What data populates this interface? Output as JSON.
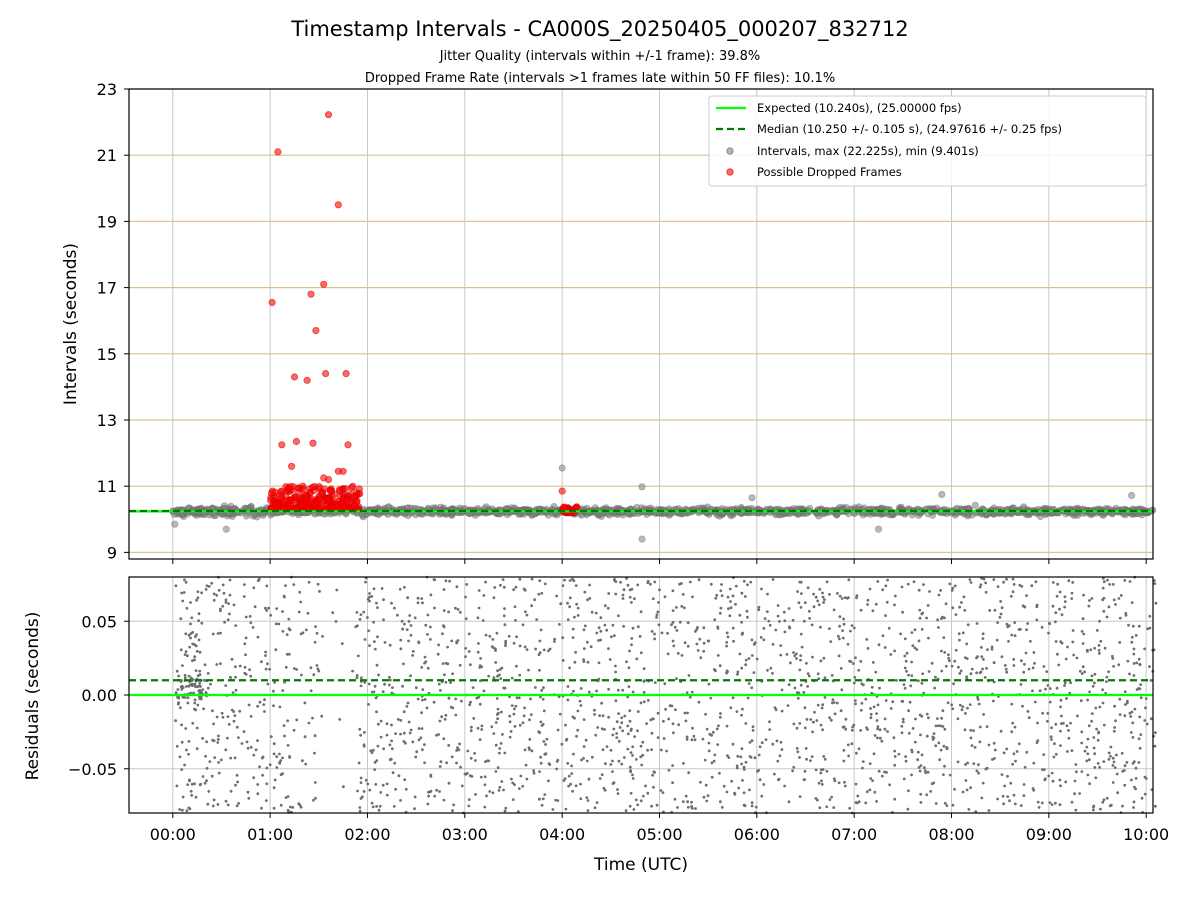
{
  "chart_data": [
    {
      "type": "scatter",
      "title": "Timestamp Intervals - CA000S_20250405_000207_832712",
      "subtitles": [
        "Jitter Quality (intervals within +/-1 frame): 39.8%",
        "Dropped Frame Rate (intervals >1 frames late within 50 FF files): 10.1%"
      ],
      "xlabel": "",
      "ylabel": "Intervals (seconds)",
      "xlim_hours": [
        -0.45,
        10.07
      ],
      "ylim": [
        8.8,
        23
      ],
      "yticks": [
        9,
        11,
        13,
        15,
        17,
        19,
        21,
        23
      ],
      "ytick_labels": [
        "9",
        "11",
        "13",
        "15",
        "17",
        "19",
        "21",
        "23"
      ],
      "grid": "x and y (y gridlines tan)",
      "legend_position": "top-right",
      "legend": [
        "Expected (10.240s), (25.00000 fps)",
        "Median (10.250 +/- 0.105 s), (24.97616 +/- 0.25 fps)",
        "Intervals, max (22.225s), min (9.401s)",
        "Possible Dropped Frames"
      ],
      "lines": {
        "expected": 10.24,
        "median": 10.25
      },
      "series": [
        {
          "name": "Intervals, max (22.225s), min (9.401s)",
          "color": "#808080",
          "summary": "approx. 3500 points, 00:00–10:05 UTC, clustered 10.0–10.5 s",
          "outliers": [
            {
              "x": 0.02,
              "y": 9.85
            },
            {
              "x": 0.55,
              "y": 9.7
            },
            {
              "x": 4.0,
              "y": 11.55
            },
            {
              "x": 4.82,
              "y": 10.98
            },
            {
              "x": 4.82,
              "y": 9.4
            },
            {
              "x": 5.95,
              "y": 10.65
            },
            {
              "x": 7.25,
              "y": 9.7
            },
            {
              "x": 7.9,
              "y": 10.75
            },
            {
              "x": 9.85,
              "y": 10.72
            }
          ]
        },
        {
          "name": "Possible Dropped Frames",
          "color": "#ff0000",
          "points": [
            {
              "x": 1.02,
              "y": 16.55
            },
            {
              "x": 1.08,
              "y": 21.1
            },
            {
              "x": 1.12,
              "y": 12.25
            },
            {
              "x": 1.22,
              "y": 11.6
            },
            {
              "x": 1.25,
              "y": 14.3
            },
            {
              "x": 1.27,
              "y": 12.35
            },
            {
              "x": 1.38,
              "y": 14.2
            },
            {
              "x": 1.42,
              "y": 16.8
            },
            {
              "x": 1.44,
              "y": 12.3
            },
            {
              "x": 1.47,
              "y": 15.7
            },
            {
              "x": 1.55,
              "y": 17.1
            },
            {
              "x": 1.57,
              "y": 14.4
            },
            {
              "x": 1.6,
              "y": 22.225
            },
            {
              "x": 1.7,
              "y": 19.5
            },
            {
              "x": 1.78,
              "y": 14.4
            },
            {
              "x": 1.8,
              "y": 12.25
            },
            {
              "x": 1.55,
              "y": 11.25
            },
            {
              "x": 1.6,
              "y": 11.2
            },
            {
              "x": 1.7,
              "y": 11.45
            },
            {
              "x": 1.75,
              "y": 11.45
            },
            {
              "x": 4.0,
              "y": 10.85
            }
          ],
          "clusters": [
            {
              "x_range": [
                1.0,
                1.92
              ],
              "y_range": [
                10.3,
                11.0
              ]
            },
            {
              "x_range": [
                4.0,
                4.15
              ],
              "y_range": [
                10.2,
                10.38
              ]
            }
          ]
        }
      ]
    },
    {
      "type": "scatter",
      "xlabel": "Time (UTC)",
      "ylabel": "Residuals (seconds)",
      "xlim_hours": [
        -0.45,
        10.07
      ],
      "ylim": [
        -0.08,
        0.08
      ],
      "yticks": [
        -0.05,
        0.0,
        0.05
      ],
      "ytick_labels": [
        "−0.05",
        "0.00",
        "0.05"
      ],
      "xticks": [
        "00:00",
        "01:00",
        "02:00",
        "03:00",
        "04:00",
        "05:00",
        "06:00",
        "07:00",
        "08:00",
        "09:00",
        "10:00"
      ],
      "grid": "x and y",
      "lines": {
        "expected": 0.0,
        "median": 0.01
      },
      "series": [
        {
          "name": "",
          "color": "#6e6e6e",
          "summary": "approx. 2500 residual points spread uniformly between −0.08 and 0.08 s; sparse gap 01:30–01:50"
        }
      ]
    }
  ],
  "colors": {
    "expected_line": "#00ff00",
    "median_line": "#007a00",
    "intervals": "#808080",
    "dropped": "#ff0000",
    "y_grid_top": "#d8c48c",
    "grid": "#c8c8c8"
  }
}
